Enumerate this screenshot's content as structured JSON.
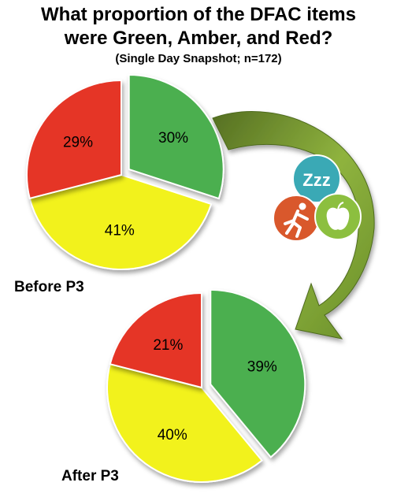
{
  "chart_data": [
    {
      "type": "pie",
      "label": "Before P3",
      "series": [
        {
          "category": "Green",
          "value": 30,
          "label": "30%",
          "color": "#4caf50"
        },
        {
          "category": "Amber",
          "value": 41,
          "label": "41%",
          "color": "#f2f21a"
        },
        {
          "category": "Red",
          "value": 29,
          "label": "29%",
          "color": "#e53527"
        }
      ]
    },
    {
      "type": "pie",
      "label": "After P3",
      "series": [
        {
          "category": "Green",
          "value": 39,
          "label": "39%",
          "color": "#4caf50"
        },
        {
          "category": "Amber",
          "value": 40,
          "label": "40%",
          "color": "#f2f21a"
        },
        {
          "category": "Red",
          "value": 21,
          "label": "21%",
          "color": "#e53527"
        }
      ]
    }
  ],
  "header": {
    "title_line1": "What proportion of the DFAC items",
    "title_line2": "were Green, Amber, and Red?",
    "subtitle": "(Single Day Snapshot; n=172)"
  },
  "icons": {
    "sleep_letters": "Zzz",
    "names": [
      "sleep-icon",
      "activity-icon",
      "nutrition-icon",
      "curved-arrow-icon"
    ],
    "colors": {
      "sleep": "#3aa9b5",
      "activity": "#d9582c",
      "nutrition": "#8cbf3f",
      "arrow": "#6d9a2e"
    }
  }
}
